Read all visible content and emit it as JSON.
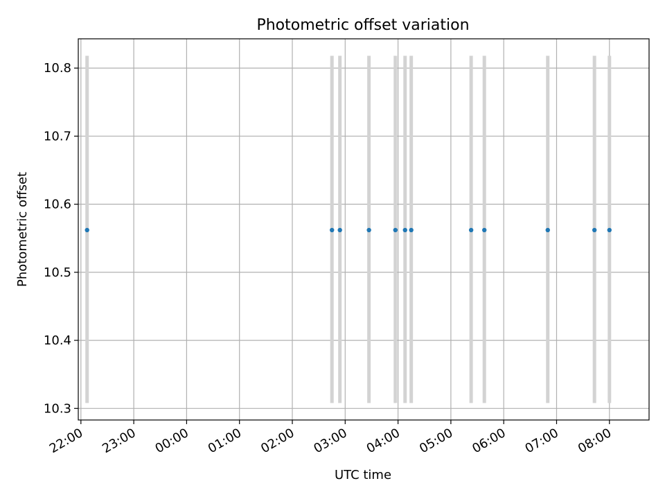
{
  "chart_data": {
    "type": "scatter",
    "title": "Photometric offset variation",
    "xlabel": "UTC time",
    "ylabel": "Photometric offset",
    "grid": true,
    "x_ticks": [
      "22:00",
      "23:00",
      "00:00",
      "01:00",
      "02:00",
      "03:00",
      "04:00",
      "05:00",
      "06:00",
      "07:00",
      "08:00"
    ],
    "y_ticks": [
      "10.3",
      "10.4",
      "10.5",
      "10.6",
      "10.7",
      "10.8"
    ],
    "y_tick_values": [
      10.3,
      10.4,
      10.5,
      10.6,
      10.7,
      10.8
    ],
    "xlim": [
      "21:57",
      "08:45"
    ],
    "ylim": [
      10.283,
      10.843
    ],
    "error_bar_range": [
      10.308,
      10.818
    ],
    "points": [
      {
        "x": "22:07",
        "y": 10.562
      },
      {
        "x": "02:45",
        "y": 10.562
      },
      {
        "x": "02:54",
        "y": 10.562
      },
      {
        "x": "03:27",
        "y": 10.562
      },
      {
        "x": "03:57",
        "y": 10.562
      },
      {
        "x": "04:08",
        "y": 10.562
      },
      {
        "x": "04:15",
        "y": 10.562
      },
      {
        "x": "05:23",
        "y": 10.562
      },
      {
        "x": "05:38",
        "y": 10.562
      },
      {
        "x": "06:50",
        "y": 10.562
      },
      {
        "x": "07:43",
        "y": 10.562
      },
      {
        "x": "08:00",
        "y": 10.562
      }
    ],
    "colors": {
      "point": "#1f77b4",
      "errorbar": "#d3d3d3",
      "grid": "#b0b0b0",
      "axis": "#000000"
    }
  }
}
